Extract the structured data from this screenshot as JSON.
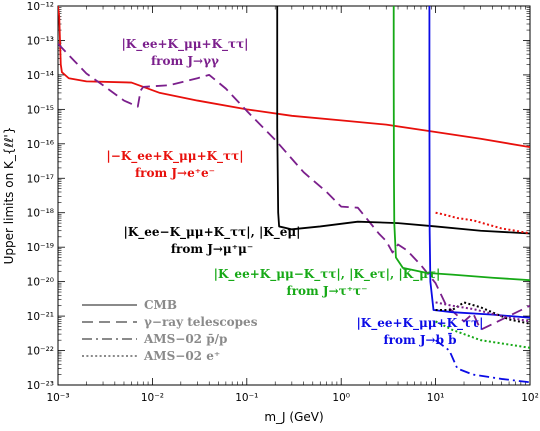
{
  "chart_data": {
    "type": "line",
    "xlabel": "m_J (GeV)",
    "ylabel": "Upper limits on K_{ℓℓ'}",
    "xscale": "log",
    "yscale": "log",
    "xlim": [
      0.001,
      100
    ],
    "ylim": [
      1e-23,
      1e-12
    ],
    "x_tick_labels": [
      "10⁻³",
      "10⁻²",
      "10⁻¹",
      "10⁰",
      "10¹",
      "10²"
    ],
    "y_tick_labels": [
      "10⁻²³",
      "10⁻²²",
      "10⁻²¹",
      "10⁻²⁰",
      "10⁻¹⁹",
      "10⁻¹⁸",
      "10⁻¹⁷",
      "10⁻¹⁶",
      "10⁻¹⁵",
      "10⁻¹⁴",
      "10⁻¹³",
      "10⁻¹²"
    ],
    "colors": {
      "purple": "#7b1f8c",
      "red": "#e8100c",
      "black": "#000000",
      "green": "#16a916",
      "blue": "#0b0be6",
      "legend_gray": "#8a8a8a"
    },
    "series": [
      {
        "color": "red",
        "style": "solid",
        "points": [
          [
            0.001,
            1e-12
          ],
          [
            0.00103,
            5e-13
          ],
          [
            0.00107,
            2e-14
          ],
          [
            0.0011,
            1.2e-14
          ],
          [
            0.0013,
            8e-15
          ],
          [
            0.002,
            6.5e-15
          ],
          [
            0.006,
            6e-15
          ],
          [
            0.012,
            3e-15
          ],
          [
            0.03,
            1.8e-15
          ],
          [
            0.1,
            1e-15
          ],
          [
            0.3,
            6.5e-16
          ],
          [
            1,
            4.8e-16
          ],
          [
            3,
            3.6e-16
          ],
          [
            10,
            2.2e-16
          ],
          [
            30,
            1.4e-16
          ],
          [
            100,
            8e-17
          ]
        ]
      },
      {
        "color": "purple",
        "style": "dashed",
        "points": [
          [
            0.001,
            8e-14
          ],
          [
            0.0015,
            2.5e-14
          ],
          [
            0.002,
            1.1e-14
          ],
          [
            0.003,
            5e-15
          ],
          [
            0.005,
            1.8e-15
          ],
          [
            0.007,
            1.2e-15
          ],
          [
            0.0075,
            3.5e-15
          ],
          [
            0.008,
            4.5e-15
          ],
          [
            0.015,
            5e-15
          ],
          [
            0.03,
            8e-15
          ],
          [
            0.04,
            1e-14
          ],
          [
            0.06,
            4e-15
          ],
          [
            0.1,
            9e-16
          ],
          [
            0.2,
            1.3e-16
          ],
          [
            0.4,
            1.5e-17
          ],
          [
            0.7,
            4e-18
          ],
          [
            1,
            1.5e-18
          ],
          [
            1.5,
            1.4e-18
          ],
          [
            2.5,
            2.5e-19
          ],
          [
            3,
            1.5e-19
          ],
          [
            3.5,
            7e-20
          ],
          [
            4,
            1.2e-19
          ],
          [
            5,
            8e-20
          ],
          [
            7,
            3e-20
          ],
          [
            10,
            9e-21
          ],
          [
            13,
            2e-21
          ],
          [
            20,
            7e-22
          ],
          [
            25,
            1.2e-21
          ],
          [
            30,
            4e-22
          ],
          [
            100,
            2e-21
          ]
        ]
      },
      {
        "color": "black",
        "style": "solid",
        "points": [
          [
            0.21,
            1e-12
          ],
          [
            0.21,
            3e-16
          ],
          [
            0.215,
            1e-18
          ],
          [
            0.22,
            4e-19
          ],
          [
            0.3,
            3.3e-19
          ],
          [
            0.6,
            4e-19
          ],
          [
            1.5,
            5.5e-19
          ],
          [
            4,
            5e-19
          ],
          [
            10,
            4e-19
          ],
          [
            30,
            3e-19
          ],
          [
            100,
            2.5e-19
          ]
        ]
      },
      {
        "color": "green",
        "style": "solid",
        "points": [
          [
            3.6,
            1e-12
          ],
          [
            3.6,
            1e-14
          ],
          [
            3.62,
            1e-17
          ],
          [
            3.65,
            5e-19
          ],
          [
            3.8,
            5e-20
          ],
          [
            4.5,
            2.5e-20
          ],
          [
            8,
            1.8e-20
          ],
          [
            15,
            1.6e-20
          ],
          [
            40,
            1.3e-20
          ],
          [
            100,
            1.1e-20
          ]
        ]
      },
      {
        "color": "blue",
        "style": "solid",
        "points": [
          [
            8.6,
            1e-12
          ],
          [
            8.6,
            1e-15
          ],
          [
            8.65,
            3e-19
          ],
          [
            8.8,
            1e-20
          ],
          [
            9.5,
            1.5e-21
          ],
          [
            15,
            1.3e-21
          ],
          [
            40,
            1.1e-21
          ],
          [
            100,
            9e-22
          ]
        ]
      },
      {
        "color": "red",
        "style": "dotted",
        "points": [
          [
            10,
            1e-18
          ],
          [
            12,
            9e-19
          ],
          [
            17,
            7e-19
          ],
          [
            25,
            6e-19
          ],
          [
            50,
            3.5e-19
          ],
          [
            70,
            3e-19
          ],
          [
            100,
            2.5e-19
          ]
        ]
      },
      {
        "color": "black",
        "style": "dotted",
        "points": [
          [
            10,
            1.5e-21
          ],
          [
            15,
            1.5e-21
          ],
          [
            20,
            2.5e-21
          ],
          [
            30,
            1.8e-21
          ],
          [
            60,
            8e-22
          ],
          [
            100,
            6e-22
          ]
        ]
      },
      {
        "color": "purple",
        "style": "dotted",
        "points": [
          [
            10,
            2.5e-21
          ],
          [
            15,
            2e-21
          ],
          [
            25,
            1.6e-21
          ],
          [
            50,
            1e-21
          ],
          [
            100,
            7e-22
          ]
        ]
      },
      {
        "color": "green",
        "style": "dotted",
        "points": [
          [
            10,
            7e-22
          ],
          [
            15,
            4e-22
          ],
          [
            30,
            2e-22
          ],
          [
            100,
            1.2e-22
          ]
        ]
      },
      {
        "color": "blue",
        "style": "dashdot",
        "points": [
          [
            10,
            2e-22
          ],
          [
            14,
            1e-22
          ],
          [
            17,
            3e-23
          ],
          [
            25,
            2e-23
          ],
          [
            50,
            1.5e-23
          ],
          [
            100,
            1.2e-23
          ]
        ]
      }
    ],
    "annotations": [
      {
        "id": "ann-gammagamma",
        "color": "purple",
        "line1": "|K_ee+K_μμ+K_ττ|",
        "line2": "from J→γγ"
      },
      {
        "id": "ann-ee",
        "color": "red",
        "line1": "|−K_ee+K_μμ+K_ττ|",
        "line2": "from J→e⁺e⁻"
      },
      {
        "id": "ann-mumu",
        "color": "black",
        "line1": "|K_ee−K_μμ+K_ττ|, |K_eμ|",
        "line2": "from J→μ⁺μ⁻"
      },
      {
        "id": "ann-tautau",
        "color": "green",
        "line1": "|K_ee+K_μμ−K_ττ|, |K_eτ|, |K_μτ|",
        "line2": "from J→τ⁺τ⁻"
      },
      {
        "id": "ann-bb",
        "color": "blue",
        "line1": "|K_ee+K_μμ+K_ττ|",
        "line2": "from J→b b̄"
      }
    ],
    "legend": {
      "placement": "bottom-left",
      "entries": [
        {
          "label": "CMB",
          "style": "solid"
        },
        {
          "label": "γ−ray telescopes",
          "style": "dashed"
        },
        {
          "label": "AMS−02  p̄/p",
          "style": "dashdot"
        },
        {
          "label": "AMS−02  e⁺",
          "style": "dotted"
        }
      ]
    }
  }
}
